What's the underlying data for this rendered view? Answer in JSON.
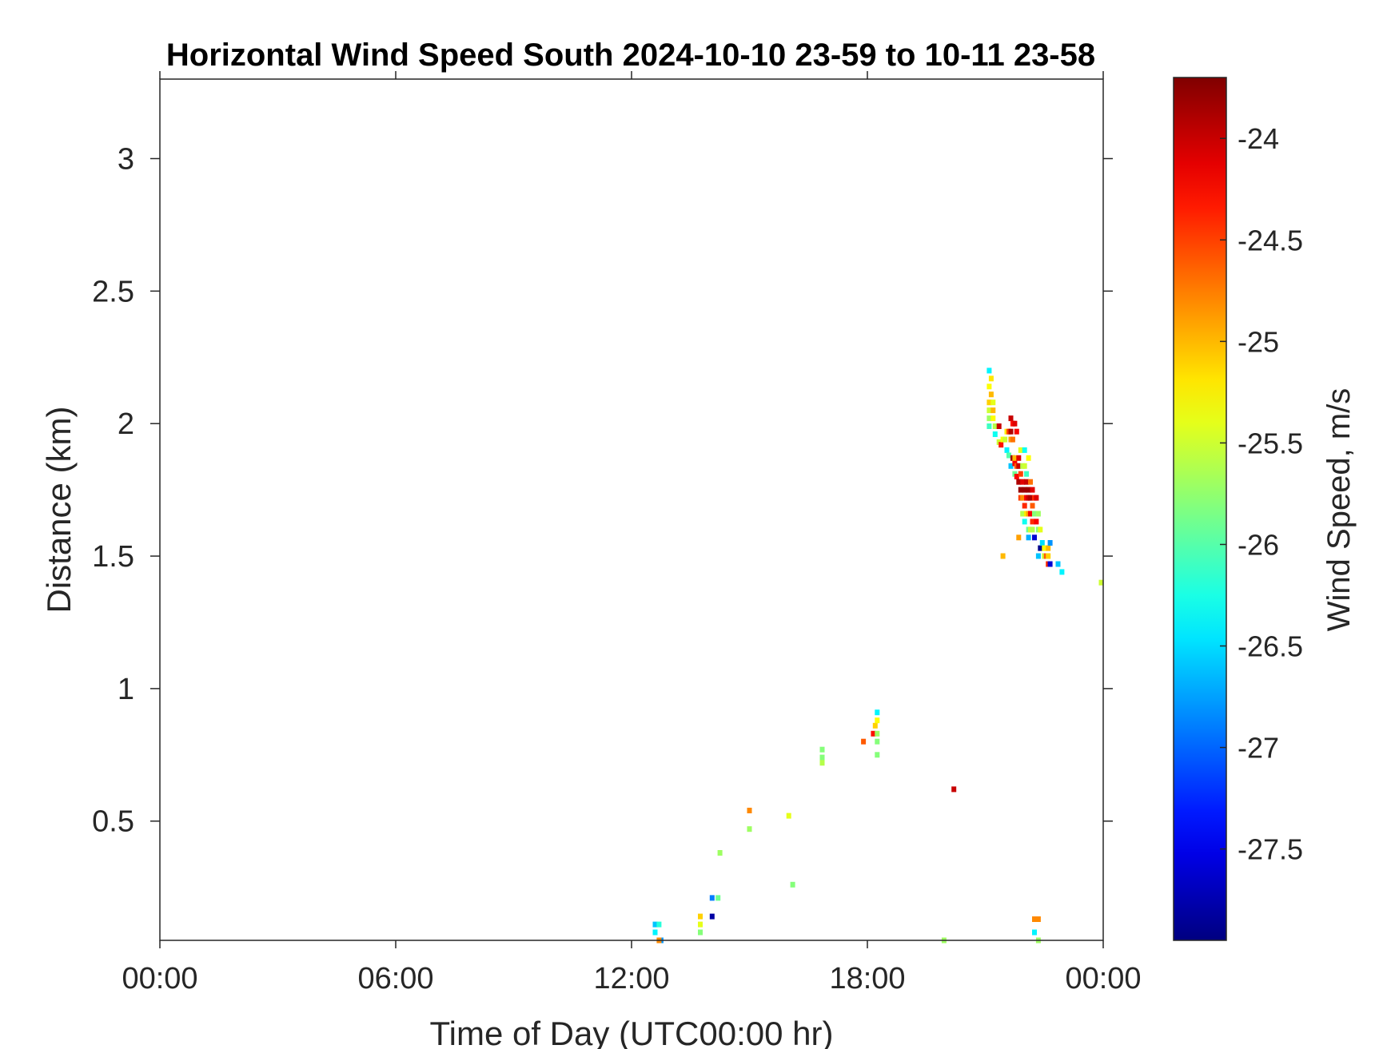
{
  "chart_data": {
    "type": "heatmap",
    "title": "Horizontal Wind Speed South 2024-10-10 23-59 to 10-11 23-58",
    "xlabel": "Time of Day (UTC00:00 hr)",
    "ylabel": "Distance (km)",
    "colorbar_label": "Wind Speed, m/s",
    "x_unit": "hours",
    "xlim": [
      0,
      24
    ],
    "ylim": [
      0.05,
      3.3
    ],
    "clim": [
      -27.95,
      -23.7
    ],
    "colormap": "jet",
    "x_ticks": [
      {
        "value": 0,
        "label": "00:00"
      },
      {
        "value": 6,
        "label": "06:00"
      },
      {
        "value": 12,
        "label": "12:00"
      },
      {
        "value": 18,
        "label": "18:00"
      },
      {
        "value": 24,
        "label": "00:00"
      }
    ],
    "y_ticks": [
      {
        "value": 0.5,
        "label": "0.5"
      },
      {
        "value": 1,
        "label": "1"
      },
      {
        "value": 1.5,
        "label": "1.5"
      },
      {
        "value": 2,
        "label": "2"
      },
      {
        "value": 2.5,
        "label": "2.5"
      },
      {
        "value": 3,
        "label": "3"
      }
    ],
    "colorbar_ticks": [
      {
        "value": -24,
        "label": "-24"
      },
      {
        "value": -24.5,
        "label": "-24.5"
      },
      {
        "value": -25,
        "label": "-25"
      },
      {
        "value": -25.5,
        "label": "-25.5"
      },
      {
        "value": -26,
        "label": "-26"
      },
      {
        "value": -26.5,
        "label": "-26.5"
      },
      {
        "value": -27,
        "label": "-27"
      },
      {
        "value": -27.5,
        "label": "-27.5"
      }
    ],
    "grid": false,
    "points": [
      [
        12.6,
        0.11,
        -26.6
      ],
      [
        12.7,
        0.11,
        -26.2
      ],
      [
        12.6,
        0.08,
        -26.4
      ],
      [
        12.75,
        0.05,
        -26.8
      ],
      [
        12.7,
        0.05,
        -24.8
      ],
      [
        13.75,
        0.14,
        -25.1
      ],
      [
        13.75,
        0.11,
        -25.4
      ],
      [
        13.75,
        0.08,
        -25.8
      ],
      [
        14.05,
        0.21,
        -26.9
      ],
      [
        14.2,
        0.21,
        -25.9
      ],
      [
        14.05,
        0.14,
        -27.8
      ],
      [
        14.25,
        0.38,
        -25.7
      ],
      [
        15.0,
        0.54,
        -24.8
      ],
      [
        15.0,
        0.47,
        -25.7
      ],
      [
        16.0,
        0.52,
        -25.4
      ],
      [
        16.1,
        0.26,
        -25.8
      ],
      [
        16.85,
        0.77,
        -25.8
      ],
      [
        16.85,
        0.74,
        -25.8
      ],
      [
        16.85,
        0.72,
        -25.6
      ],
      [
        17.9,
        0.8,
        -24.6
      ],
      [
        18.15,
        0.83,
        -24.3
      ],
      [
        18.2,
        0.86,
        -25.1
      ],
      [
        18.25,
        0.91,
        -26.4
      ],
      [
        18.25,
        0.88,
        -25.3
      ],
      [
        18.25,
        0.83,
        -25.7
      ],
      [
        18.25,
        0.8,
        -25.8
      ],
      [
        18.25,
        0.75,
        -25.8
      ],
      [
        20.2,
        0.62,
        -24.0
      ],
      [
        19.95,
        0.05,
        -25.7
      ],
      [
        21.1,
        2.2,
        -26.4
      ],
      [
        21.15,
        2.17,
        -25.2
      ],
      [
        21.1,
        2.14,
        -25.3
      ],
      [
        21.15,
        2.11,
        -25.0
      ],
      [
        21.1,
        2.08,
        -25.1
      ],
      [
        21.2,
        2.08,
        -25.4
      ],
      [
        21.1,
        2.05,
        -25.5
      ],
      [
        21.2,
        2.05,
        -25.0
      ],
      [
        21.1,
        2.02,
        -25.7
      ],
      [
        21.2,
        2.02,
        -25.3
      ],
      [
        21.1,
        1.99,
        -26.1
      ],
      [
        21.25,
        1.99,
        -25.6
      ],
      [
        21.25,
        1.96,
        -26.3
      ],
      [
        21.35,
        1.99,
        -24.0
      ],
      [
        21.35,
        1.93,
        -25.5
      ],
      [
        21.4,
        1.92,
        -24.3
      ],
      [
        21.45,
        1.94,
        -25.3
      ],
      [
        21.5,
        1.94,
        -25.5
      ],
      [
        21.55,
        1.97,
        -25.2
      ],
      [
        21.55,
        1.9,
        -26.4
      ],
      [
        21.6,
        1.97,
        -24.5
      ],
      [
        21.65,
        2.02,
        -24.0
      ],
      [
        21.65,
        1.97,
        -23.9
      ],
      [
        21.7,
        2.0,
        -24.3
      ],
      [
        21.65,
        1.94,
        -24.9
      ],
      [
        21.7,
        1.94,
        -24.7
      ],
      [
        21.75,
        2.0,
        -24.1
      ],
      [
        21.8,
        1.97,
        -24.2
      ],
      [
        21.6,
        1.88,
        -26.0
      ],
      [
        21.7,
        1.87,
        -23.8
      ],
      [
        21.65,
        1.84,
        -26.6
      ],
      [
        21.75,
        1.85,
        -24.2
      ],
      [
        21.75,
        1.81,
        -25.9
      ],
      [
        21.75,
        1.87,
        -25.0
      ],
      [
        21.8,
        1.84,
        -24.6
      ],
      [
        21.85,
        1.84,
        -24.0
      ],
      [
        21.8,
        1.8,
        -24.2
      ],
      [
        21.85,
        1.78,
        -23.9
      ],
      [
        21.9,
        1.81,
        -24.5
      ],
      [
        21.9,
        1.75,
        -23.8
      ],
      [
        21.95,
        1.78,
        -24.1
      ],
      [
        21.85,
        1.87,
        -24.1
      ],
      [
        21.9,
        1.9,
        -25.4
      ],
      [
        21.95,
        1.84,
        -25.6
      ],
      [
        21.9,
        1.72,
        -24.5
      ],
      [
        21.95,
        1.72,
        -24.8
      ],
      [
        22.0,
        1.75,
        -23.8
      ],
      [
        22.0,
        1.69,
        -24.4
      ],
      [
        22.05,
        1.72,
        -24.2
      ],
      [
        22.05,
        1.78,
        -24.0
      ],
      [
        22.1,
        1.75,
        -23.8
      ],
      [
        22.1,
        1.72,
        -24.0
      ],
      [
        22.0,
        1.9,
        -26.3
      ],
      [
        22.0,
        1.84,
        -25.5
      ],
      [
        22.05,
        1.81,
        -26.1
      ],
      [
        22.1,
        1.87,
        -25.3
      ],
      [
        22.15,
        1.78,
        -24.7
      ],
      [
        22.15,
        1.72,
        -23.9
      ],
      [
        22.2,
        1.75,
        -24.1
      ],
      [
        22.2,
        1.69,
        -24.6
      ],
      [
        21.95,
        1.66,
        -25.6
      ],
      [
        22.0,
        1.63,
        -26.3
      ],
      [
        22.05,
        1.66,
        -25.2
      ],
      [
        22.1,
        1.66,
        -24.9
      ],
      [
        22.15,
        1.66,
        -24.2
      ],
      [
        22.2,
        1.63,
        -24.4
      ],
      [
        22.1,
        1.6,
        -25.9
      ],
      [
        22.15,
        1.6,
        -25.5
      ],
      [
        22.25,
        1.66,
        -25.8
      ],
      [
        22.25,
        1.72,
        -24.4
      ],
      [
        22.3,
        1.72,
        -24.1
      ],
      [
        22.3,
        1.63,
        -24.2
      ],
      [
        22.2,
        1.6,
        -25.6
      ],
      [
        22.35,
        1.6,
        -25.8
      ],
      [
        22.4,
        1.6,
        -25.4
      ],
      [
        22.35,
        1.66,
        -25.7
      ],
      [
        21.85,
        1.57,
        -24.9
      ],
      [
        22.1,
        1.57,
        -26.7
      ],
      [
        22.25,
        1.57,
        -27.6
      ],
      [
        21.45,
        1.5,
        -25.0
      ],
      [
        22.35,
        1.5,
        -26.6
      ],
      [
        22.4,
        1.53,
        -27.9
      ],
      [
        22.45,
        1.55,
        -26.5
      ],
      [
        22.5,
        1.53,
        -25.3
      ],
      [
        22.5,
        1.5,
        -25.5
      ],
      [
        22.55,
        1.5,
        -24.6
      ],
      [
        22.6,
        1.53,
        -25.0
      ],
      [
        22.6,
        1.47,
        -24.4
      ],
      [
        22.65,
        1.47,
        -27.6
      ],
      [
        22.65,
        1.55,
        -26.8
      ],
      [
        22.85,
        1.47,
        -26.6
      ],
      [
        22.95,
        1.44,
        -26.4
      ],
      [
        23.95,
        1.4,
        -25.5
      ],
      [
        22.6,
        1.5,
        -25.1
      ],
      [
        22.25,
        0.13,
        -24.8
      ],
      [
        22.35,
        0.13,
        -24.8
      ],
      [
        22.25,
        0.08,
        -26.4
      ],
      [
        22.35,
        0.05,
        -25.7
      ]
    ]
  }
}
